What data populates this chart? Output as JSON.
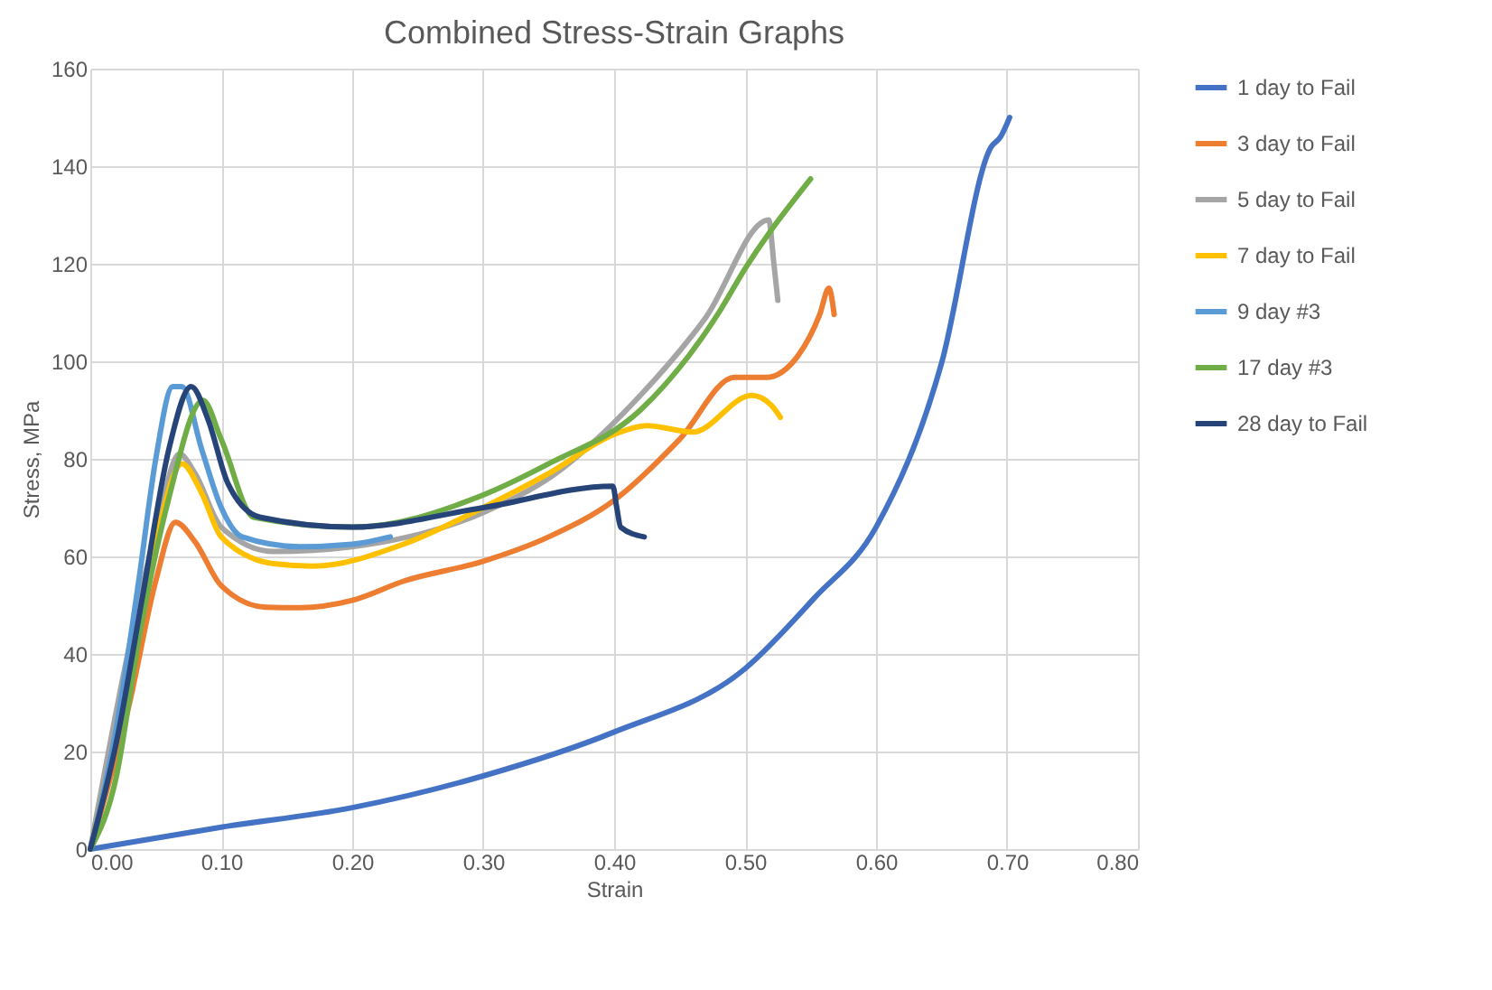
{
  "chart_data": {
    "type": "line",
    "title": "Combined Stress-Strain Graphs",
    "xlabel": "Strain",
    "ylabel": "Stress, MPa",
    "xlim": [
      0,
      0.8
    ],
    "ylim": [
      0,
      160
    ],
    "xticks": [
      {
        "value": 0,
        "label": "0.00"
      },
      {
        "value": 0.1,
        "label": "0.10"
      },
      {
        "value": 0.2,
        "label": "0.20"
      },
      {
        "value": 0.3,
        "label": "0.30"
      },
      {
        "value": 0.4,
        "label": "0.40"
      },
      {
        "value": 0.5,
        "label": "0.50"
      },
      {
        "value": 0.6,
        "label": "0.60"
      },
      {
        "value": 0.7,
        "label": "0.70"
      },
      {
        "value": 0.8,
        "label": "0.80"
      }
    ],
    "yticks": [
      0,
      20,
      40,
      60,
      80,
      100,
      120,
      140,
      160
    ],
    "grid": true,
    "legend": "right",
    "line_style": "solid",
    "marker": "none",
    "series": [
      {
        "name": "1 day to Fail",
        "color": "#4472c4",
        "x": [
          0,
          0.1,
          0.2,
          0.3,
          0.4,
          0.5,
          0.553,
          0.6,
          0.65,
          0.688,
          0.695,
          0.702
        ],
        "values": [
          0,
          4.5,
          8.5,
          15,
          24,
          37,
          51.5,
          66,
          99.6,
          144,
          146,
          150
        ]
      },
      {
        "name": "3 day to Fail",
        "color": "#ed7d31",
        "x": [
          0,
          0.03,
          0.05,
          0.065,
          0.08,
          0.1,
          0.134,
          0.16,
          0.2,
          0.24,
          0.3,
          0.35,
          0.4,
          0.45,
          0.492,
          0.516,
          0.54,
          0.557,
          0.564,
          0.568
        ],
        "values": [
          0,
          30,
          55,
          67,
          63,
          54,
          49.6,
          49.5,
          51,
          55,
          59,
          64,
          71.5,
          84,
          96.7,
          96.7,
          101,
          109.6,
          115,
          109.6
        ]
      },
      {
        "name": "5 day to Fail",
        "color": "#a5a5a5",
        "x": [
          0,
          0.05,
          0.068,
          0.08,
          0.1,
          0.14,
          0.2,
          0.3,
          0.35,
          0.42,
          0.47,
          0.518,
          0.522,
          0.525
        ],
        "values": [
          0,
          65,
          81,
          77,
          66,
          61,
          62,
          69,
          76,
          93,
          109,
          129,
          120,
          112.5
        ]
      },
      {
        "name": "7 day to Fail",
        "color": "#ffc000",
        "x": [
          0,
          0.03,
          0.05,
          0.07,
          0.085,
          0.1,
          0.14,
          0.17,
          0.24,
          0.3,
          0.35,
          0.4,
          0.425,
          0.46,
          0.505,
          0.52,
          0.527
        ],
        "values": [
          0,
          36,
          63,
          79,
          73,
          64,
          58.5,
          58,
          62.6,
          70,
          77,
          85,
          86.8,
          85.5,
          93,
          91,
          88.5
        ]
      },
      {
        "name": "9 day #3",
        "color": "#5b9bd5",
        "x": [
          0,
          0.02,
          0.037,
          0.05,
          0.063,
          0.07,
          0.085,
          0.1,
          0.116,
          0.16,
          0.2,
          0.229
        ],
        "values": [
          0,
          25,
          55,
          80,
          94.8,
          94.8,
          82,
          70,
          64,
          62,
          62.5,
          64
        ]
      },
      {
        "name": "17 day #3",
        "color": "#70ad47",
        "x": [
          0,
          0.02,
          0.037,
          0.06,
          0.086,
          0.1,
          0.125,
          0.2,
          0.3,
          0.35,
          0.42,
          0.48,
          0.5,
          0.55
        ],
        "values": [
          0,
          15,
          43,
          72,
          92,
          84,
          68,
          66,
          72.6,
          79,
          90,
          110,
          119,
          137.4
        ]
      },
      {
        "name": "28 day to Fail",
        "color": "#264478",
        "x": [
          0,
          0.02,
          0.04,
          0.06,
          0.077,
          0.09,
          0.105,
          0.13,
          0.2,
          0.3,
          0.399,
          0.402,
          0.405,
          0.423
        ],
        "values": [
          0,
          22,
          52,
          82,
          94.8,
          88,
          75,
          68,
          66,
          70,
          74.4,
          70,
          66,
          64
        ]
      }
    ]
  }
}
